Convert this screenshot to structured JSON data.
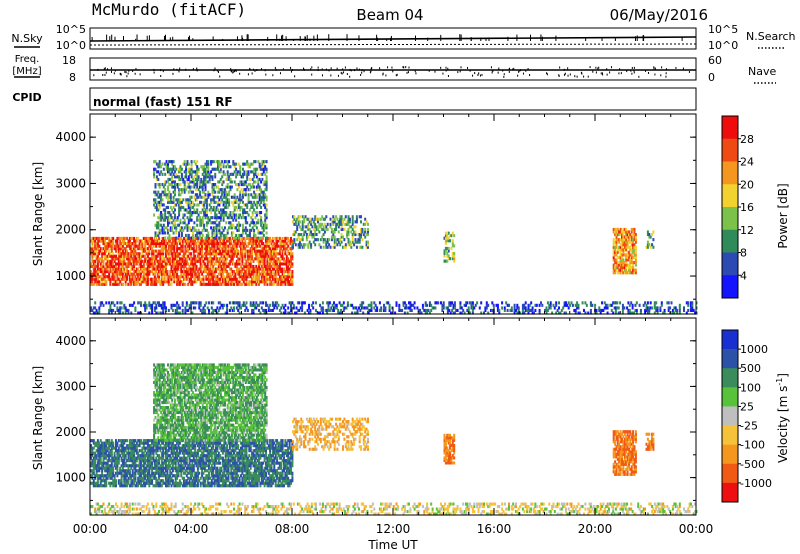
{
  "header": {
    "site": "McMurdo (fitACF)",
    "beam": "Beam 04",
    "date": "06/May/2016"
  },
  "top_panels": {
    "nsky_label": "N.Sky",
    "nsearch_label": "N.Search",
    "left_ticks": [
      "10^5",
      "10^0"
    ],
    "right_ticks": [
      "10^5",
      "10^0"
    ],
    "freq_label_1": "Freq.",
    "freq_label_2": "[MHz]",
    "freq_ticks": [
      "18",
      "8"
    ],
    "nave_label": "Nave",
    "nave_ticks": [
      "60",
      "0"
    ],
    "cpid_label": "CPID",
    "cpid_value": "normal (fast) 151 RF"
  },
  "chart_data": [
    {
      "type": "heatmap",
      "panel": "power",
      "ylabel": "Slant Range [km]",
      "yticks": [
        "4000",
        "3000",
        "2000",
        "1000"
      ],
      "ylim": [
        180,
        4500
      ],
      "colorbar_label": "Power [dB]",
      "colorbar_ticks": [
        "28",
        "24",
        "20",
        "16",
        "12",
        "8",
        "4"
      ],
      "colorbar_range": [
        0,
        32
      ],
      "colors": [
        "#1414ff",
        "#2c49b4",
        "#2f8c5a",
        "#7cc24a",
        "#f2d22e",
        "#f5961e",
        "#f04a14",
        "#ee0c0c"
      ],
      "echo_regions": [
        {
          "t0": 0.0,
          "t1": 8.0,
          "r0": 800,
          "r1": 1800,
          "level": 26
        },
        {
          "t0": 2.5,
          "t1": 7.0,
          "r0": 1800,
          "r1": 3500,
          "level": 10
        },
        {
          "t0": 8.0,
          "t1": 11.0,
          "r0": 1600,
          "r1": 2300,
          "level": 11
        },
        {
          "t0": 14.0,
          "t1": 14.4,
          "r0": 1300,
          "r1": 1950,
          "level": 14
        },
        {
          "t0": 20.7,
          "t1": 21.6,
          "r0": 1050,
          "r1": 2000,
          "level": 22
        },
        {
          "t0": 22.0,
          "t1": 22.3,
          "r0": 1600,
          "r1": 1950,
          "level": 12
        },
        {
          "t0": 0.0,
          "t1": 24.0,
          "r0": 180,
          "r1": 420,
          "level": 6
        }
      ]
    },
    {
      "type": "heatmap",
      "panel": "velocity",
      "ylabel": "Slant Range [km]",
      "yticks": [
        "4000",
        "3000",
        "2000",
        "1000"
      ],
      "ylim": [
        180,
        4500
      ],
      "xlabel": "Time UT",
      "xticks": [
        "00:00",
        "04:00",
        "08:00",
        "12:00",
        "16:00",
        "20:00",
        "00:00"
      ],
      "xlim": [
        0,
        24
      ],
      "colorbar_label": "Velocity [m s^-1]",
      "colorbar_ticks": [
        "1000",
        "500",
        "100",
        "25",
        "-25",
        "-100",
        "-500",
        "-1000"
      ],
      "colors": [
        "#1a2fd0",
        "#2c52a8",
        "#3a8c5a",
        "#58c23a",
        "#bfbfbf",
        "#f5c23a",
        "#f5961e",
        "#f05a14",
        "#ee1010"
      ],
      "echo_regions": [
        {
          "t0": 0.0,
          "t1": 8.0,
          "r0": 800,
          "r1": 1800,
          "level": 500
        },
        {
          "t0": 2.5,
          "t1": 7.0,
          "r0": 1800,
          "r1": 3500,
          "level": 100
        },
        {
          "t0": 8.0,
          "t1": 11.0,
          "r0": 1600,
          "r1": 2300,
          "level": -100
        },
        {
          "t0": 14.0,
          "t1": 14.4,
          "r0": 1300,
          "r1": 1950,
          "level": -500
        },
        {
          "t0": 20.7,
          "t1": 21.6,
          "r0": 1050,
          "r1": 2000,
          "level": -500
        },
        {
          "t0": 22.0,
          "t1": 22.3,
          "r0": 1600,
          "r1": 1950,
          "level": -500
        },
        {
          "t0": 0.0,
          "t1": 24.0,
          "r0": 180,
          "r1": 420,
          "level": -25
        }
      ]
    }
  ]
}
